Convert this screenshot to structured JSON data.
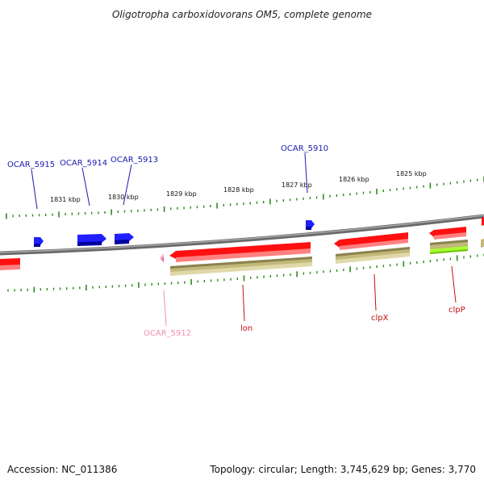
{
  "title": "Oligotropha carboxidovorans OM5, complete genome",
  "footer": {
    "accession": "Accession: NC_011386",
    "summary": "Topology: circular; Length: 3,745,629 bp; Genes: 3,770"
  },
  "colors": {
    "backbone": "#808080",
    "cds_reverse": "#ff1010",
    "cds_forward": "#1010ff",
    "rna": "#ffb0d0",
    "orthologs_olive": "#c2b87a",
    "orthologs_green": "#a6ff30",
    "tick": "#2a8a1a",
    "label_blue": "#1a1ab0",
    "label_red": "#c01010",
    "label_pink": "#f090b0"
  },
  "scale_labels": [
    "1831 kbp",
    "1830 kbp",
    "1829 kbp",
    "1828 kbp",
    "1827 kbp",
    "1826 kbp",
    "1825 kbp"
  ],
  "gene_labels": {
    "ocar5915": "OCAR_5915",
    "ocar5914": "OCAR_5914",
    "ocar5913": "OCAR_5913",
    "ocar5910": "OCAR_5910",
    "ocar5912": "OCAR_5912",
    "lon": "lon",
    "clpx": "clpX",
    "clpp": "clpP"
  }
}
